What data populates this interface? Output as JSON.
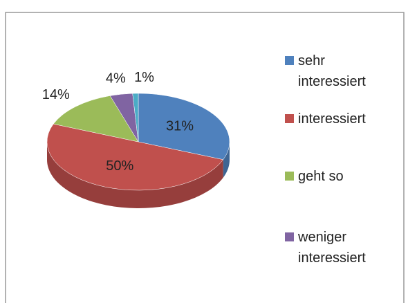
{
  "chart_data": {
    "type": "pie",
    "categories": [
      "sehr interessiert",
      "interessiert",
      "geht so",
      "weniger interessiert",
      null
    ],
    "values": [
      31,
      50,
      14,
      4,
      1
    ],
    "value_labels": [
      "31%",
      "50%",
      "14%",
      "4%",
      "1%"
    ],
    "colors": [
      "#4f81bd",
      "#c0504d",
      "#9bbb59",
      "#8064a2",
      "#4bacc6"
    ],
    "legend": "right"
  }
}
